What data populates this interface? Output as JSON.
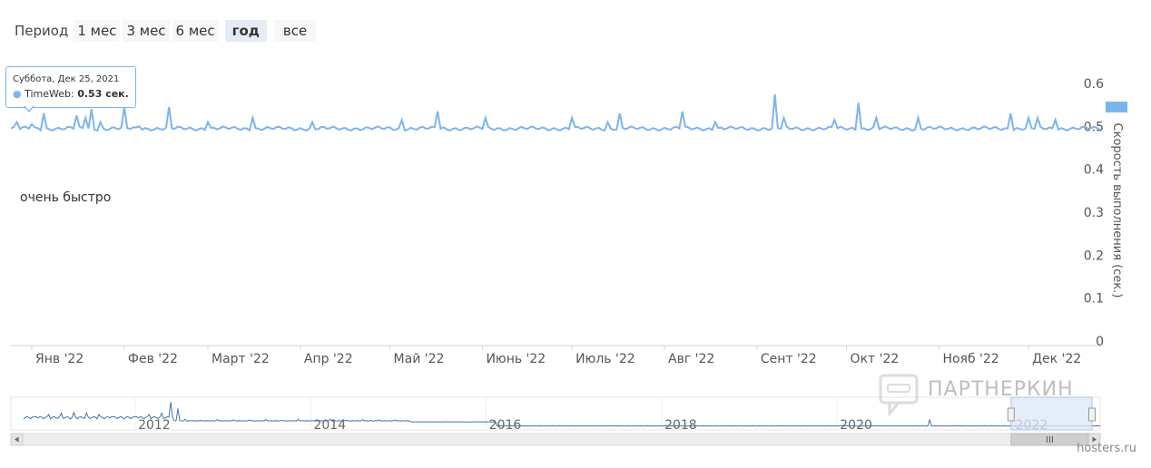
{
  "period": {
    "label": "Период",
    "buttons": [
      {
        "label": "1 мес",
        "active": false
      },
      {
        "label": "3 мес",
        "active": false
      },
      {
        "label": "6 мес",
        "active": false
      },
      {
        "label": "год",
        "active": true
      },
      {
        "label": "все",
        "active": false
      }
    ]
  },
  "tooltip": {
    "date": "Суббота, Дек 25, 2021",
    "series": "TimeWeb",
    "value": "0.53 сек."
  },
  "annotation": "очень быстро",
  "watermark": "ПАРТНЕРКИН",
  "credit": "hosters.ru",
  "colors": {
    "series": "#7cb5ec",
    "navigator_line": "#4572a7",
    "axis": "#ccd6eb",
    "selection": "#dbe7f7"
  },
  "chart_data": {
    "type": "line",
    "series_name": "TimeWeb",
    "ylabel": "Скорость выполнения (сек.)",
    "ylim": [
      0,
      0.6
    ],
    "yticks": [
      "0",
      "0.1",
      "0.2",
      "0.3",
      "0.4",
      "0.5",
      "0.6"
    ],
    "xticks": [
      "Янв '22",
      "Фев '22",
      "Март '22",
      "Апр '22",
      "Май '22",
      "Июнь '22",
      "Июль '22",
      "Авг '22",
      "Сент '22",
      "Окт '22",
      "Нояб '22",
      "Дек '22"
    ],
    "x_range": [
      "2021-12-25",
      "2022-12-25"
    ],
    "baseline": 0.495,
    "spikes": [
      {
        "date": "2021-12-27",
        "value": 0.51
      },
      {
        "date": "2022-01-01",
        "value": 0.505
      },
      {
        "date": "2022-01-05",
        "value": 0.53
      },
      {
        "date": "2022-01-16",
        "value": 0.525
      },
      {
        "date": "2022-01-19",
        "value": 0.52
      },
      {
        "date": "2022-01-21",
        "value": 0.54
      },
      {
        "date": "2022-01-24",
        "value": 0.51
      },
      {
        "date": "2022-02-01",
        "value": 0.545
      },
      {
        "date": "2022-02-06",
        "value": 0.5
      },
      {
        "date": "2022-02-16",
        "value": 0.545
      },
      {
        "date": "2022-03-01",
        "value": 0.51
      },
      {
        "date": "2022-03-16",
        "value": 0.52
      },
      {
        "date": "2022-04-05",
        "value": 0.51
      },
      {
        "date": "2022-05-05",
        "value": 0.515
      },
      {
        "date": "2022-05-17",
        "value": 0.535
      },
      {
        "date": "2022-06-02",
        "value": 0.52
      },
      {
        "date": "2022-07-01",
        "value": 0.52
      },
      {
        "date": "2022-07-13",
        "value": 0.51
      },
      {
        "date": "2022-07-17",
        "value": 0.53
      },
      {
        "date": "2022-08-07",
        "value": 0.535
      },
      {
        "date": "2022-08-18",
        "value": 0.51
      },
      {
        "date": "2022-09-07",
        "value": 0.575
      },
      {
        "date": "2022-09-10",
        "value": 0.52
      },
      {
        "date": "2022-09-27",
        "value": 0.515
      },
      {
        "date": "2022-10-05",
        "value": 0.555
      },
      {
        "date": "2022-10-11",
        "value": 0.52
      },
      {
        "date": "2022-10-25",
        "value": 0.52
      },
      {
        "date": "2022-11-25",
        "value": 0.53
      },
      {
        "date": "2022-12-01",
        "value": 0.52
      },
      {
        "date": "2022-12-04",
        "value": 0.52
      },
      {
        "date": "2022-12-10",
        "value": 0.515
      }
    ],
    "navigator": {
      "xticks": [
        "2012",
        "2014",
        "2016",
        "2018",
        "2020",
        "2022"
      ],
      "range": [
        "2010-08-01",
        "2022-12-31"
      ],
      "selection": [
        "2021-12-25",
        "2022-12-25"
      ]
    }
  }
}
